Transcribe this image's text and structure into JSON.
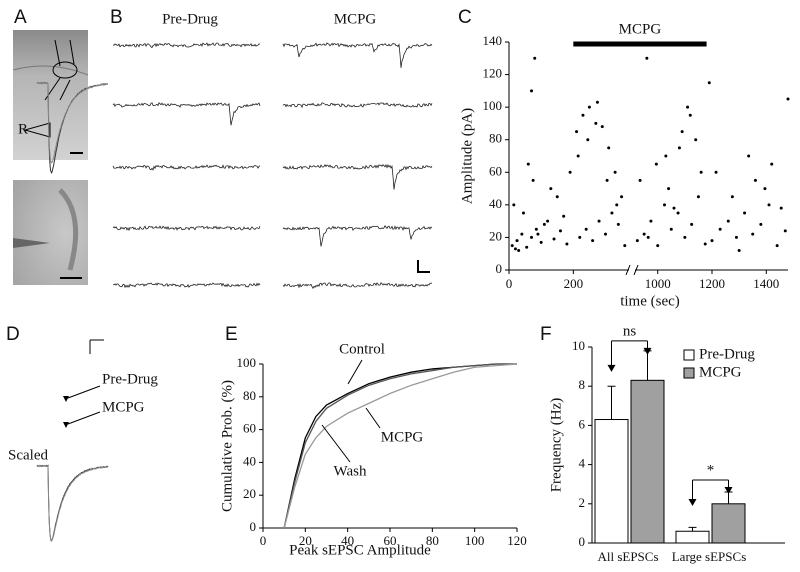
{
  "panels": {
    "A": {
      "label": "A",
      "marker": "R"
    },
    "B": {
      "label": "B",
      "conditions": [
        "Pre-Drug",
        "MCPG"
      ]
    },
    "D": {
      "label": "D",
      "traces": [
        "Pre-Drug",
        "MCPG"
      ],
      "scaled": "Scaled"
    }
  },
  "chart_data": [
    {
      "type": "scatter",
      "panel": "C",
      "xlabel": "time (sec)",
      "ylabel": "Amplitude (pA)",
      "color": "#000000",
      "annotation": {
        "text": "MCPG",
        "span": [
          200,
          1180
        ]
      },
      "xlim": [
        0,
        1480
      ],
      "x_break": [
        370,
        920
      ],
      "xticks": [
        0,
        200,
        1000,
        1200,
        1400
      ],
      "ylim": [
        0,
        140
      ],
      "yticks": [
        0,
        20,
        40,
        60,
        80,
        100,
        120,
        140
      ],
      "x": [
        10,
        25,
        40,
        55,
        70,
        85,
        100,
        120,
        140,
        160,
        180,
        15,
        45,
        75,
        110,
        150,
        190,
        30,
        60,
        90,
        130,
        170,
        80,
        20,
        210,
        230,
        250,
        270,
        290,
        310,
        330,
        350,
        220,
        240,
        260,
        280,
        300,
        320,
        340,
        360,
        215,
        245,
        275,
        305,
        335,
        925,
        950,
        975,
        1000,
        1025,
        1050,
        1075,
        1100,
        1125,
        1150,
        1175,
        935,
        965,
        995,
        1030,
        1060,
        1090,
        1120,
        1160,
        1040,
        1080,
        1110,
        1140,
        1200,
        1230,
        1260,
        1290,
        1320,
        1350,
        1380,
        1410,
        1440,
        1470,
        1215,
        1275,
        1335,
        1395,
        1455,
        1300,
        1360,
        1420,
        1480,
        70,
        960,
        1190
      ],
      "values": [
        15,
        18,
        22,
        14,
        20,
        25,
        17,
        30,
        19,
        24,
        16,
        40,
        35,
        55,
        28,
        45,
        60,
        12,
        65,
        22,
        50,
        33,
        130,
        13,
        85,
        95,
        100,
        90,
        88,
        75,
        60,
        45,
        20,
        25,
        18,
        30,
        22,
        35,
        28,
        15,
        70,
        80,
        103,
        55,
        40,
        18,
        22,
        30,
        15,
        40,
        25,
        35,
        20,
        28,
        45,
        16,
        55,
        20,
        65,
        70,
        38,
        85,
        95,
        60,
        50,
        75,
        100,
        80,
        18,
        25,
        30,
        20,
        35,
        22,
        28,
        40,
        15,
        24,
        60,
        45,
        70,
        50,
        38,
        12,
        55,
        65,
        105,
        110,
        130,
        115
      ]
    },
    {
      "type": "line",
      "panel": "E",
      "xlabel": "Peak sEPSC Amplitude",
      "ylabel": "Cumulative Prob. (%)",
      "xlim": [
        0,
        120
      ],
      "xticks": [
        0,
        20,
        40,
        60,
        80,
        100,
        120
      ],
      "ylim": [
        0,
        100
      ],
      "yticks": [
        0,
        20,
        40,
        60,
        80,
        100
      ],
      "x": [
        10,
        15,
        20,
        25,
        30,
        40,
        50,
        60,
        70,
        80,
        90,
        100,
        110,
        120
      ],
      "series": [
        {
          "name": "Control",
          "color": "#000000",
          "values": [
            0,
            30,
            55,
            68,
            75,
            82,
            88,
            92,
            95,
            97,
            98,
            99,
            100,
            100
          ]
        },
        {
          "name": "Wash",
          "color": "#555555",
          "values": [
            0,
            28,
            52,
            65,
            73,
            81,
            87,
            91,
            94,
            96,
            98,
            99,
            100,
            100
          ]
        },
        {
          "name": "MCPG",
          "color": "#999999",
          "values": [
            0,
            25,
            45,
            55,
            62,
            70,
            76,
            82,
            87,
            91,
            95,
            98,
            99,
            100
          ]
        }
      ]
    },
    {
      "type": "bar",
      "panel": "F",
      "ylabel": "Frequency (Hz)",
      "legend": "upper right",
      "categories": [
        "All sEPSCs",
        "Large sEPSCs"
      ],
      "ylim": [
        0,
        10
      ],
      "yticks": [
        0,
        2,
        4,
        6,
        8,
        10
      ],
      "annotations": [
        "ns",
        "*"
      ],
      "series": [
        {
          "name": "Pre-Drug",
          "color": "#ffffff",
          "values": [
            6.3,
            0.6
          ],
          "errors": [
            1.7,
            0.2
          ]
        },
        {
          "name": "MCPG",
          "color": "#a0a0a0",
          "values": [
            8.3,
            2.0
          ],
          "errors": [
            1.5,
            0.6
          ]
        }
      ]
    }
  ]
}
